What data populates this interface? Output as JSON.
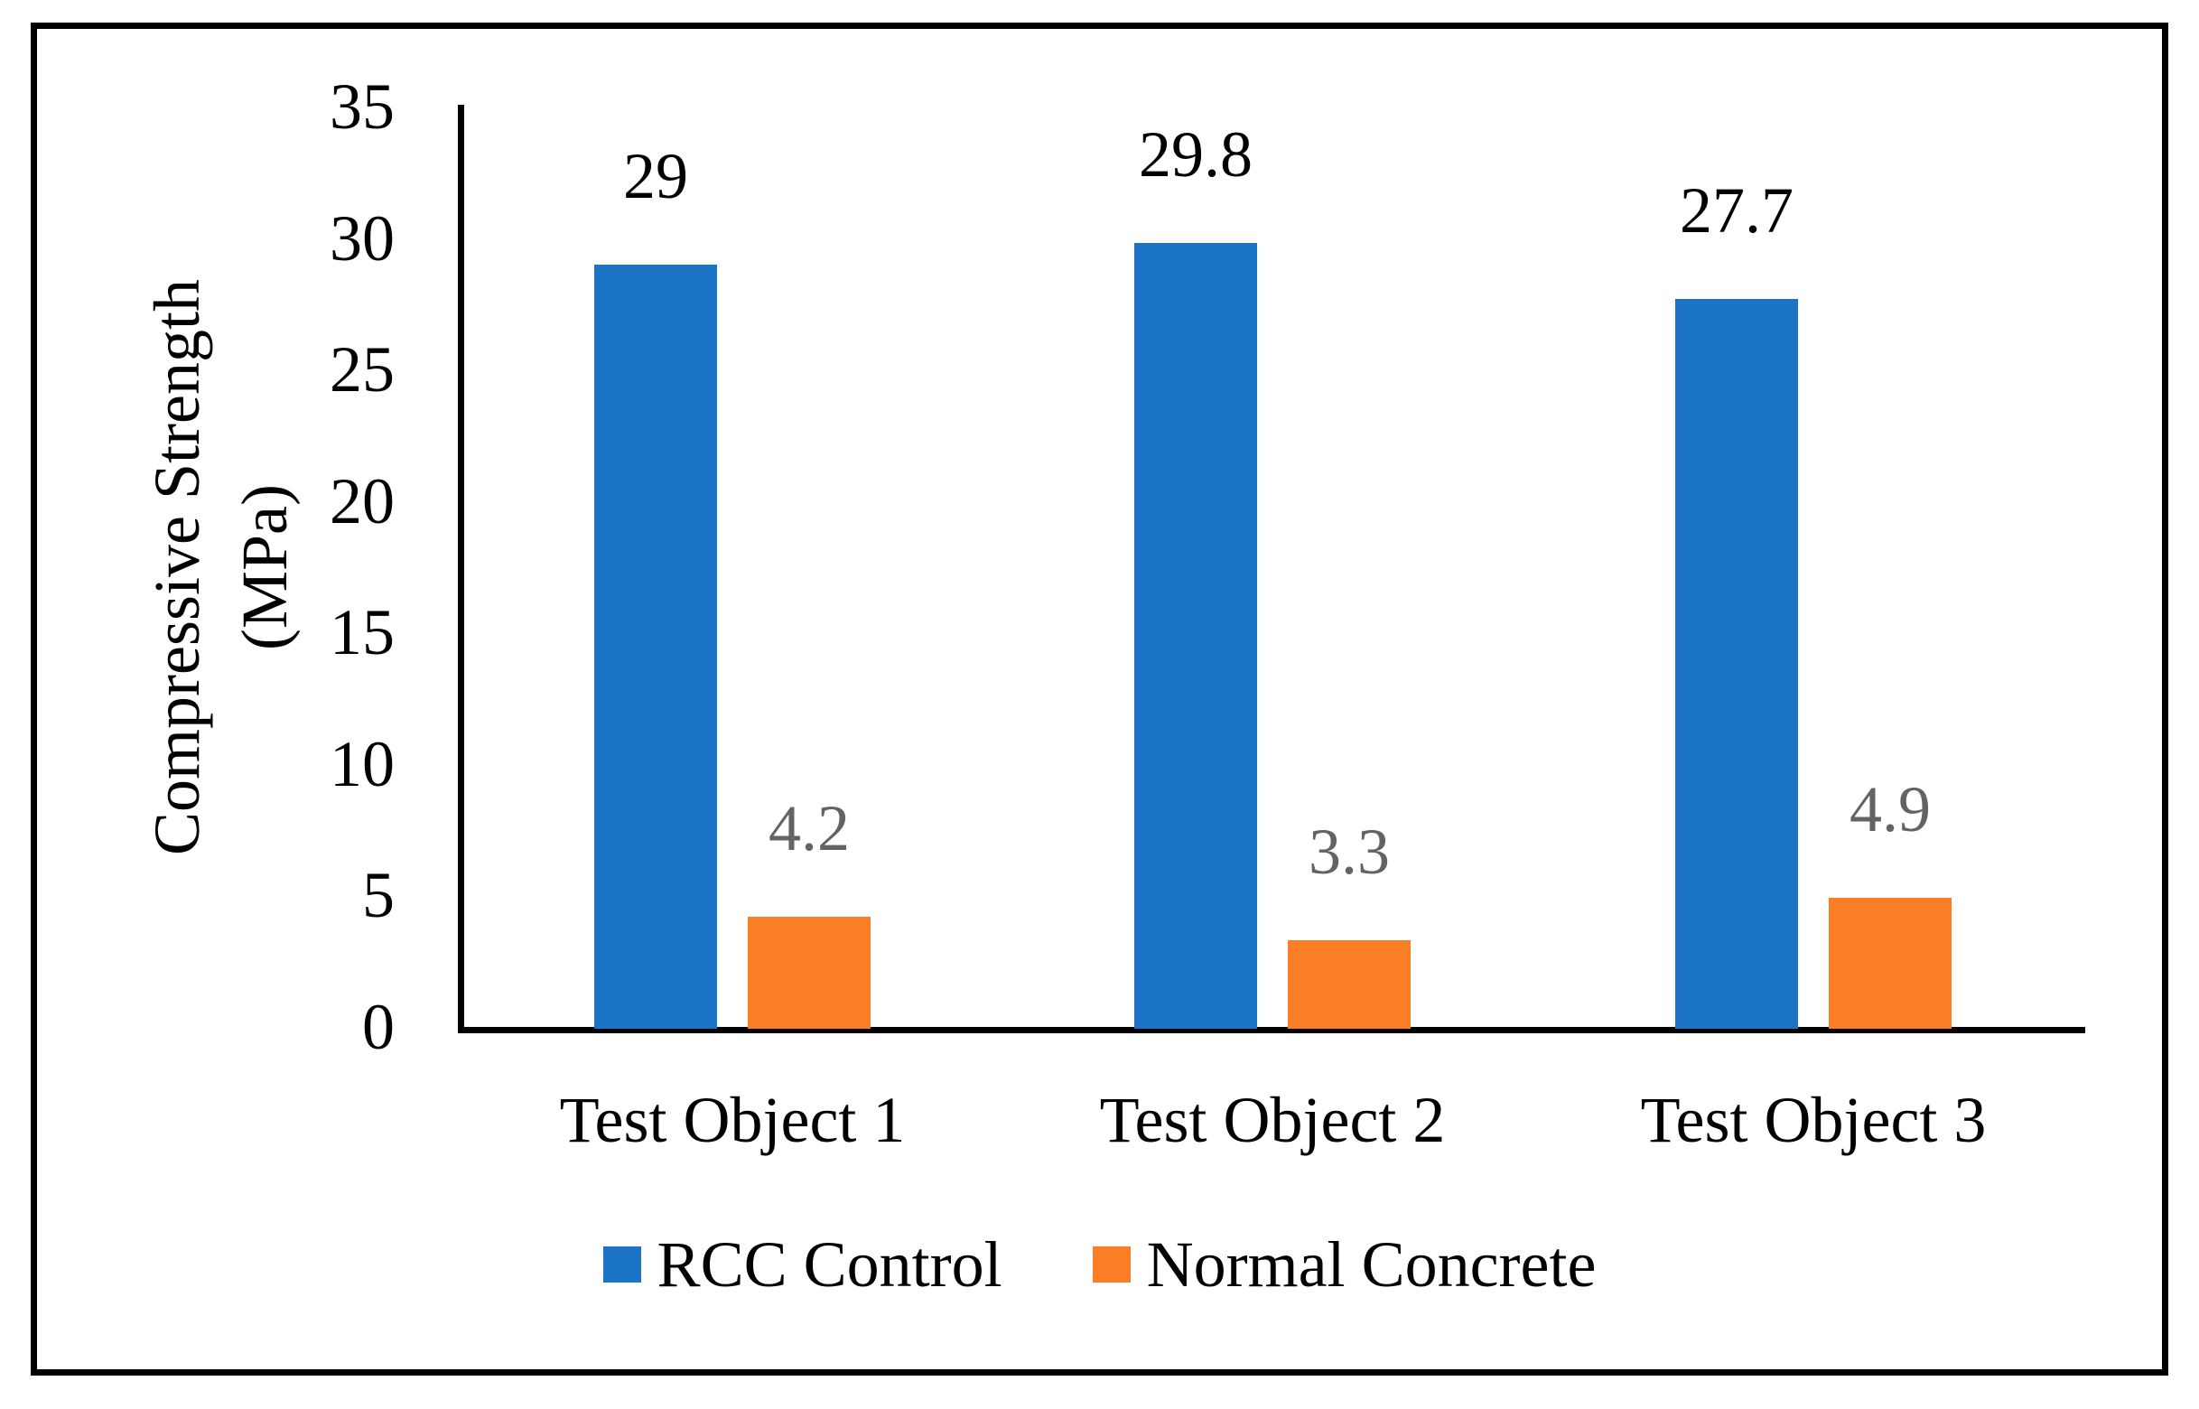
{
  "chart_data": {
    "type": "bar",
    "title": "",
    "categories": [
      "Test Object 1",
      "Test Object 2",
      "Test Object 3"
    ],
    "series": [
      {
        "name": "RCC Control",
        "color": "#1B74C6",
        "values": [
          29,
          29.8,
          27.7
        ],
        "labels": [
          "29",
          "29.8",
          "27.7"
        ],
        "label_color": "#000000"
      },
      {
        "name": "Normal Concrete",
        "color": "#FB7D25",
        "values": [
          4.2,
          3.3,
          4.9
        ],
        "labels": [
          "4.2",
          "3.3",
          "4.9"
        ],
        "label_color": "#636363"
      }
    ],
    "ylabel_line1": "Compressive Strength",
    "ylabel_line2": "(MPa)",
    "y_ticks": [
      "35",
      "30",
      "25",
      "20",
      "15",
      "10",
      "5",
      "0"
    ],
    "ylim": [
      0,
      35
    ],
    "y_tick_step": 5,
    "grid": false,
    "legend_position": "bottom",
    "axis_color": "#000000",
    "background_color": "#FFFFFF"
  }
}
